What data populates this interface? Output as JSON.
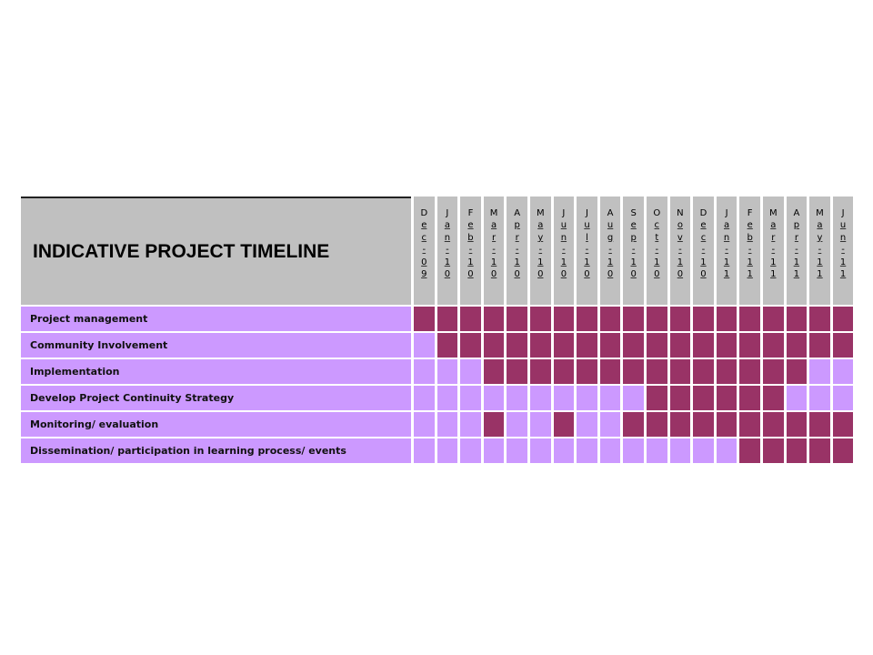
{
  "chart_data": {
    "type": "table",
    "title": "INDICATIVE PROJECT TIMELINE",
    "months": [
      "Dec-09",
      "Jan-10",
      "Feb-10",
      "Mar-10",
      "Apr-10",
      "May-10",
      "Jun-10",
      "Jul-10",
      "Aug-10",
      "Sep-10",
      "Oct-10",
      "Nov-10",
      "Dec-10",
      "Jan-11",
      "Feb-11",
      "Mar-11",
      "Apr-11",
      "May-11",
      "Jun-11"
    ],
    "activities": [
      {
        "name": "Project management",
        "active": [
          1,
          1,
          1,
          1,
          1,
          1,
          1,
          1,
          1,
          1,
          1,
          1,
          1,
          1,
          1,
          1,
          1,
          1,
          1
        ]
      },
      {
        "name": "Community Involvement",
        "active": [
          0,
          1,
          1,
          1,
          1,
          1,
          1,
          1,
          1,
          1,
          1,
          1,
          1,
          1,
          1,
          1,
          1,
          1,
          1
        ]
      },
      {
        "name": "Implementation",
        "active": [
          0,
          0,
          0,
          1,
          1,
          1,
          1,
          1,
          1,
          1,
          1,
          1,
          1,
          1,
          1,
          1,
          1,
          0,
          0
        ]
      },
      {
        "name": "Develop Project Continuity Strategy",
        "active": [
          0,
          0,
          0,
          0,
          0,
          0,
          0,
          0,
          0,
          0,
          1,
          1,
          1,
          1,
          1,
          1,
          0,
          0,
          0
        ]
      },
      {
        "name": "Monitoring/ evaluation",
        "active": [
          0,
          0,
          0,
          1,
          0,
          0,
          1,
          0,
          0,
          1,
          1,
          1,
          1,
          1,
          1,
          1,
          1,
          1,
          1
        ]
      },
      {
        "name": "Dissemination/ participation in learning process/ events",
        "active": [
          0,
          0,
          0,
          0,
          0,
          0,
          0,
          0,
          0,
          0,
          0,
          0,
          0,
          0,
          1,
          1,
          1,
          1,
          1
        ]
      }
    ]
  },
  "colors": {
    "active": "#993366",
    "inactive": "#cc99ff",
    "header": "#c0c0c0",
    "label": "#cc99ff"
  }
}
